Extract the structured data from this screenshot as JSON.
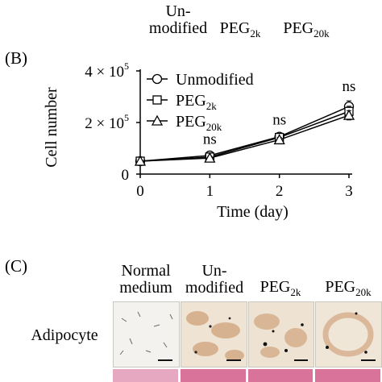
{
  "top_headers": {
    "unmod_line1": "Un-",
    "unmod_line2": "modified",
    "peg2k_base": "PEG",
    "peg2k_sub": "2k",
    "peg20k_base": "PEG",
    "peg20k_sub": "20k"
  },
  "panel_b": {
    "label": "(B)",
    "chart_data": {
      "type": "line",
      "xlabel": "Time (day)",
      "ylabel": "Cell number",
      "x": [
        0,
        1,
        2,
        3
      ],
      "xticks": [
        "0",
        "1",
        "2",
        "3"
      ],
      "xlim": [
        0,
        3
      ],
      "ylim": [
        0,
        400000
      ],
      "yticks": [
        {
          "value": 0,
          "mantissa": "0",
          "exponent": ""
        },
        {
          "value": 200000,
          "mantissa": "2 × 10",
          "exponent": "5"
        },
        {
          "value": 400000,
          "mantissa": "4 × 10",
          "exponent": "5"
        }
      ],
      "series": [
        {
          "name": "Unmodified",
          "base": "Unmodified",
          "sub": "",
          "marker": "circle",
          "values": [
            50000,
            72000,
            145000,
            262000
          ],
          "errors": [
            5000,
            8000,
            9000,
            22000
          ]
        },
        {
          "name": "PEG2k",
          "base": "PEG",
          "sub": "2k",
          "marker": "square",
          "values": [
            50000,
            66000,
            142000,
            243000
          ],
          "errors": [
            5000,
            7000,
            8000,
            20000
          ]
        },
        {
          "name": "PEG20k",
          "base": "PEG",
          "sub": "20k",
          "marker": "triangle",
          "values": [
            50000,
            62000,
            133000,
            228000
          ],
          "errors": [
            5000,
            6000,
            9000,
            18000
          ]
        }
      ],
      "annotations": [
        {
          "x": 1,
          "text": "ns"
        },
        {
          "x": 2,
          "text": "ns"
        },
        {
          "x": 3,
          "text": "ns"
        }
      ],
      "grid": false,
      "legend_position": "top-left"
    }
  },
  "panel_c": {
    "label": "(C)",
    "headers": {
      "normal_line1": "Normal",
      "normal_line2": "medium",
      "unmod_line1": "Un-",
      "unmod_line2": "modified",
      "peg2k_base": "PEG",
      "peg2k_sub": "2k",
      "peg20k_base": "PEG",
      "peg20k_sub": "20k"
    },
    "row_label": "Adipocyte",
    "colors": {
      "image_bg": "#f3efe6",
      "stain": "#c98a5a",
      "pink_row": "#d9739a"
    }
  }
}
